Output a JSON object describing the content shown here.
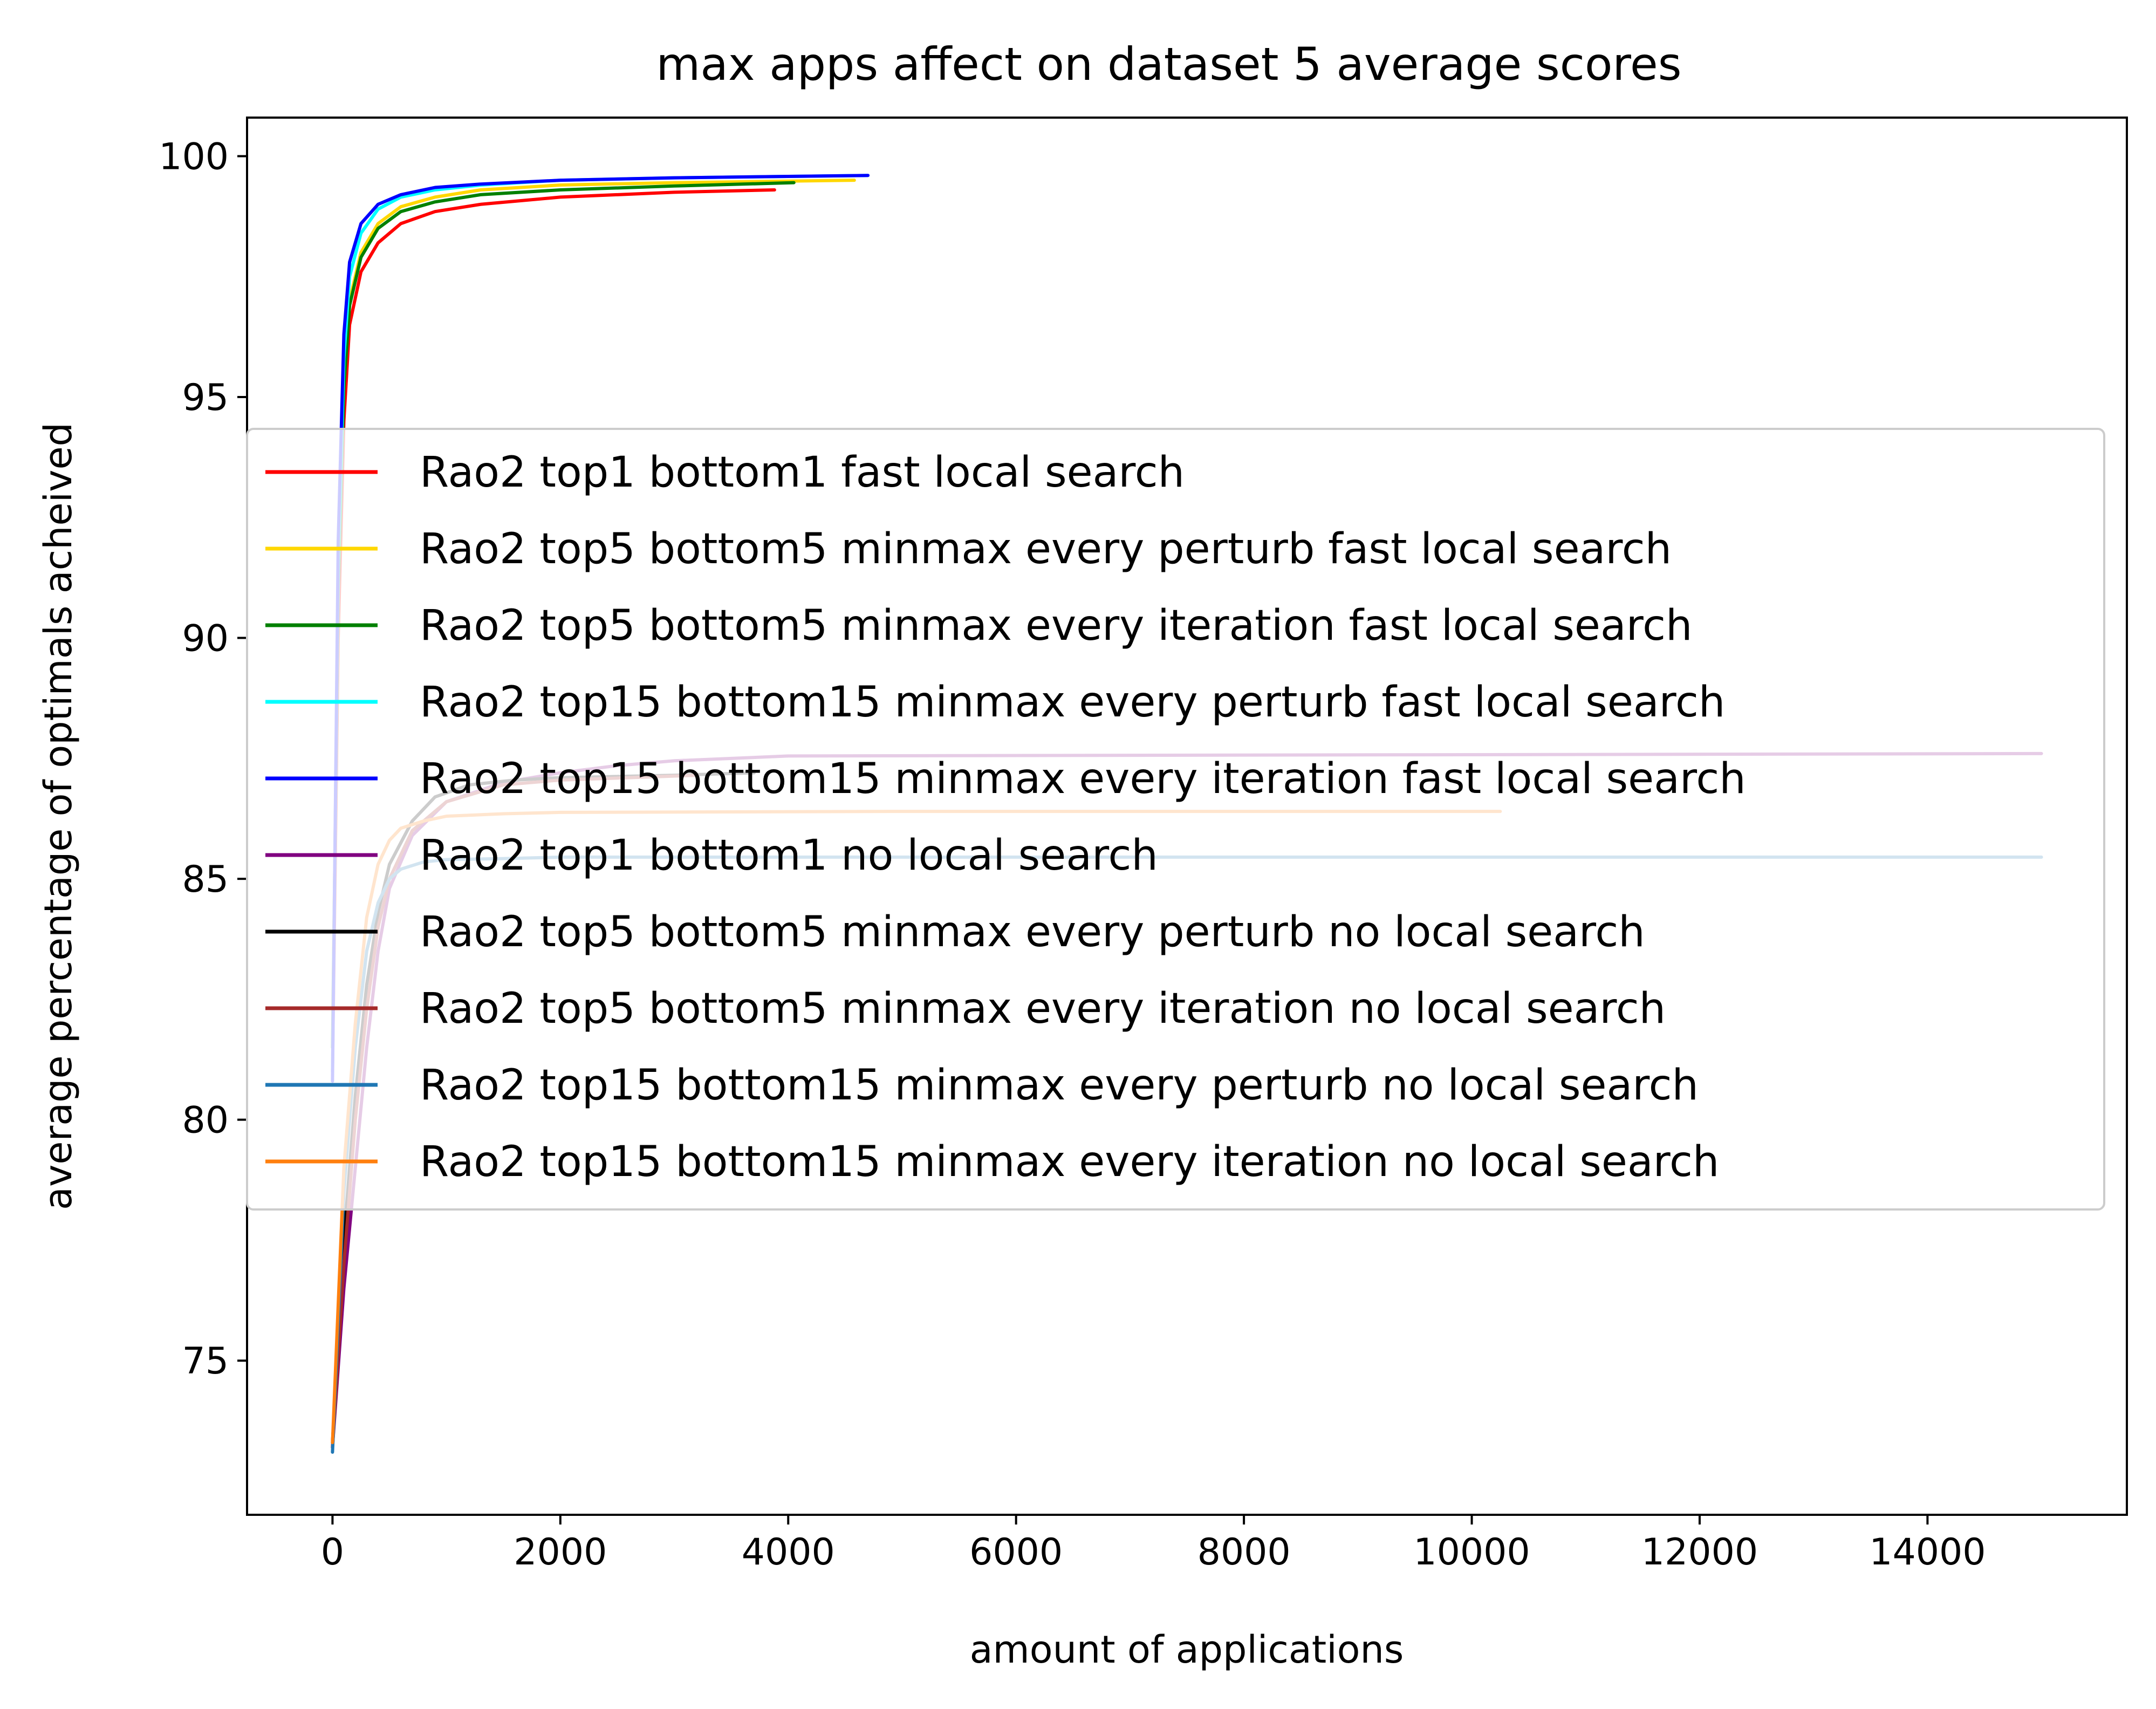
{
  "chart_data": {
    "type": "line",
    "title": "max apps affect on dataset 5 average scores",
    "xlabel": "amount of applications",
    "ylabel": "average percentage of optimals acheived",
    "xlim": [
      -750,
      15750
    ],
    "ylim": [
      71.8,
      100.8
    ],
    "xticks": [
      0,
      2000,
      4000,
      6000,
      8000,
      10000,
      12000,
      14000
    ],
    "yticks": [
      75,
      80,
      85,
      90,
      95,
      100
    ],
    "xtick_labels": [
      "0",
      "2000",
      "4000",
      "6000",
      "8000",
      "10000",
      "12000",
      "14000"
    ],
    "ytick_labels": [
      "75",
      "80",
      "85",
      "90",
      "95",
      "100"
    ],
    "grid": false,
    "legend_position": "center-left",
    "series": [
      {
        "name": "Rao2 top1 bottom1 fast local search",
        "color": "#ff0000",
        "x": [
          0,
          50,
          100,
          150,
          250,
          400,
          600,
          900,
          1300,
          2000,
          3000,
          3880
        ],
        "y": [
          81.0,
          90.0,
          94.5,
          96.5,
          97.6,
          98.2,
          98.6,
          98.85,
          99.0,
          99.15,
          99.25,
          99.3
        ]
      },
      {
        "name": "Rao2 top5 bottom5 minmax every perturb fast local search",
        "color": "#ffd700",
        "x": [
          0,
          50,
          100,
          150,
          250,
          400,
          600,
          900,
          1300,
          2000,
          3000,
          4580
        ],
        "y": [
          81.5,
          91.0,
          95.3,
          97.0,
          98.0,
          98.6,
          98.95,
          99.15,
          99.3,
          99.4,
          99.45,
          99.5
        ]
      },
      {
        "name": "Rao2 top5 bottom5 minmax every iteration fast local search",
        "color": "#008000",
        "x": [
          0,
          50,
          100,
          150,
          250,
          400,
          600,
          900,
          1300,
          2000,
          3000,
          4050
        ],
        "y": [
          81.5,
          91.0,
          95.2,
          96.9,
          97.9,
          98.5,
          98.85,
          99.05,
          99.2,
          99.3,
          99.38,
          99.45
        ]
      },
      {
        "name": "Rao2 top15 bottom15 minmax every perturb fast local search",
        "color": "#00ffff",
        "x": [
          0,
          50,
          100,
          150,
          250,
          400,
          600,
          900,
          1300,
          2000,
          3000,
          4700
        ],
        "y": [
          81.0,
          91.5,
          95.8,
          97.5,
          98.4,
          98.9,
          99.15,
          99.3,
          99.4,
          99.5,
          99.55,
          99.6
        ]
      },
      {
        "name": "Rao2 top15 bottom15 minmax every iteration fast local search",
        "color": "#0000ff",
        "x": [
          0,
          50,
          100,
          150,
          250,
          400,
          600,
          900,
          1300,
          2000,
          3000,
          4700
        ],
        "y": [
          80.8,
          92.0,
          96.3,
          97.8,
          98.6,
          99.0,
          99.2,
          99.35,
          99.42,
          99.5,
          99.55,
          99.6
        ]
      },
      {
        "name": "Rao2 top1 bottom1 no local search",
        "color": "#800080",
        "x": [
          0,
          100,
          200,
          300,
          400,
          500,
          700,
          1000,
          1500,
          2000,
          2500,
          3000,
          4000,
          15000
        ],
        "y": [
          73.2,
          76.5,
          79.0,
          81.5,
          83.5,
          84.8,
          85.9,
          86.6,
          87.0,
          87.2,
          87.35,
          87.45,
          87.55,
          87.6
        ]
      },
      {
        "name": "Rao2 top5 bottom5 minmax every perturb no local search",
        "color": "#000000",
        "x": [
          0,
          100,
          200,
          300,
          400,
          500,
          700,
          900,
          1200,
          1600,
          2000,
          3000,
          3700
        ],
        "y": [
          73.3,
          77.5,
          80.5,
          82.8,
          84.3,
          85.3,
          86.2,
          86.7,
          86.95,
          87.05,
          87.1,
          87.15,
          87.2
        ]
      },
      {
        "name": "Rao2 top5 bottom5 minmax every iteration no local search",
        "color": "#a52a2a",
        "x": [
          0,
          100,
          200,
          300,
          400,
          500,
          700,
          1000,
          1500,
          2000,
          2600,
          3200
        ],
        "y": [
          73.2,
          77.0,
          80.0,
          82.3,
          84.0,
          85.0,
          86.0,
          86.6,
          86.95,
          87.05,
          87.1,
          87.15
        ]
      },
      {
        "name": "Rao2 top15 bottom15 minmax every perturb no local search",
        "color": "#1f77b4",
        "x": [
          0,
          100,
          200,
          300,
          400,
          500,
          600,
          800,
          1000,
          1500,
          2000,
          4000,
          15000
        ],
        "y": [
          73.1,
          78.5,
          81.5,
          83.5,
          84.5,
          85.0,
          85.2,
          85.35,
          85.4,
          85.42,
          85.45,
          85.45,
          85.45
        ]
      },
      {
        "name": "Rao2 top15 bottom15 minmax every iteration no local search",
        "color": "#ff7f0e",
        "x": [
          0,
          100,
          200,
          300,
          400,
          500,
          600,
          800,
          1000,
          1500,
          2000,
          5000,
          10250
        ],
        "y": [
          73.3,
          79.0,
          82.0,
          84.2,
          85.3,
          85.8,
          86.05,
          86.2,
          86.3,
          86.35,
          86.38,
          86.4,
          86.4
        ]
      }
    ]
  }
}
